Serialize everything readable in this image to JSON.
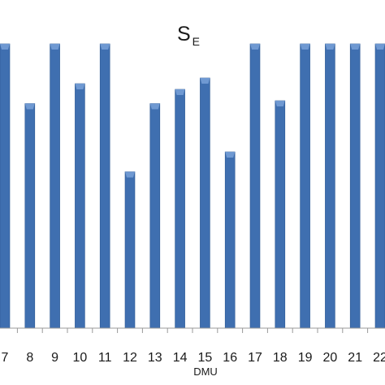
{
  "chart_data": {
    "type": "bar",
    "title": "S",
    "title_subscript": "E",
    "xlabel": "DMU",
    "ylabel": "",
    "categories": [
      "7",
      "8",
      "9",
      "10",
      "11",
      "12",
      "13",
      "14",
      "15",
      "16",
      "17",
      "18",
      "19",
      "20",
      "21",
      "22"
    ],
    "values": [
      1.0,
      0.79,
      1.0,
      0.86,
      1.0,
      0.55,
      0.79,
      0.84,
      0.88,
      0.62,
      1.0,
      0.8,
      1.0,
      1.0,
      1.0,
      1.0
    ],
    "ylim": [
      0,
      1.0
    ],
    "grid": false,
    "legend": "none",
    "colors": {
      "bar": "#3f6fb0",
      "bar_top": "#6f99d2",
      "bar_edge": "#2e5a94",
      "axis": "#999999"
    }
  }
}
